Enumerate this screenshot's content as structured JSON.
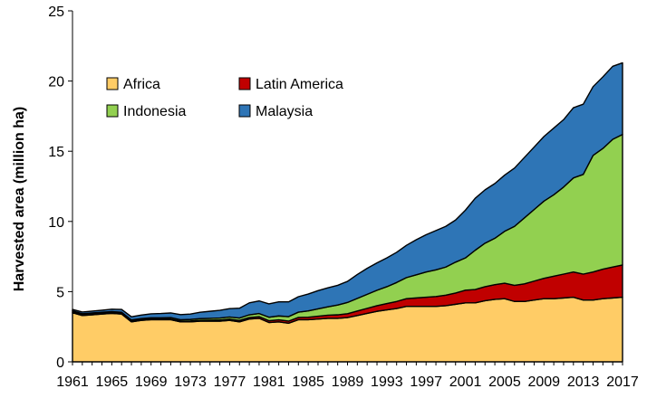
{
  "chart_data": {
    "type": "area",
    "stacked": true,
    "title": "",
    "xlabel": "",
    "ylabel": "Harvested area (million ha)",
    "xlim": [
      1961,
      2017
    ],
    "ylim": [
      0,
      25
    ],
    "yticks": [
      "0",
      "5",
      "10",
      "15",
      "20",
      "25"
    ],
    "xticks": [
      "1961",
      "1965",
      "1969",
      "1973",
      "1977",
      "1981",
      "1985",
      "1989",
      "1993",
      "1997",
      "2001",
      "2005",
      "2009",
      "2013",
      "2017"
    ],
    "grid": false,
    "legend_position": "top-left",
    "x": [
      1961,
      1962,
      1963,
      1964,
      1965,
      1966,
      1967,
      1968,
      1969,
      1970,
      1971,
      1972,
      1973,
      1974,
      1975,
      1976,
      1977,
      1978,
      1979,
      1980,
      1981,
      1982,
      1983,
      1984,
      1985,
      1986,
      1987,
      1988,
      1989,
      1990,
      1991,
      1992,
      1993,
      1994,
      1995,
      1996,
      1997,
      1998,
      1999,
      2000,
      2001,
      2002,
      2003,
      2004,
      2005,
      2006,
      2007,
      2008,
      2009,
      2010,
      2011,
      2012,
      2013,
      2014,
      2015,
      2016,
      2017
    ],
    "series": [
      {
        "name": "Africa",
        "color": "#FFCC66",
        "values": [
          3.5,
          3.3,
          3.35,
          3.4,
          3.45,
          3.4,
          2.85,
          2.95,
          3.0,
          3.0,
          3.0,
          2.85,
          2.85,
          2.9,
          2.9,
          2.9,
          2.95,
          2.85,
          3.05,
          3.1,
          2.8,
          2.85,
          2.75,
          3.0,
          3.0,
          3.05,
          3.1,
          3.1,
          3.15,
          3.3,
          3.45,
          3.6,
          3.7,
          3.8,
          3.95,
          3.95,
          3.95,
          3.95,
          4.0,
          4.1,
          4.2,
          4.2,
          4.35,
          4.45,
          4.5,
          4.3,
          4.3,
          4.4,
          4.5,
          4.5,
          4.55,
          4.6,
          4.4,
          4.4,
          4.5,
          4.55,
          4.6
        ]
      },
      {
        "name": "Latin America",
        "color": "#C00000",
        "values": [
          0.05,
          0.05,
          0.05,
          0.05,
          0.05,
          0.05,
          0.05,
          0.05,
          0.05,
          0.05,
          0.05,
          0.05,
          0.06,
          0.06,
          0.07,
          0.08,
          0.09,
          0.1,
          0.1,
          0.12,
          0.13,
          0.14,
          0.15,
          0.16,
          0.18,
          0.2,
          0.22,
          0.25,
          0.28,
          0.32,
          0.36,
          0.4,
          0.45,
          0.5,
          0.55,
          0.6,
          0.65,
          0.7,
          0.75,
          0.8,
          0.9,
          0.95,
          1.0,
          1.05,
          1.1,
          1.15,
          1.25,
          1.35,
          1.45,
          1.6,
          1.7,
          1.8,
          1.85,
          2.0,
          2.1,
          2.2,
          2.3
        ]
      },
      {
        "name": "Indonesia",
        "color": "#92D050",
        "values": [
          0.08,
          0.08,
          0.08,
          0.08,
          0.08,
          0.08,
          0.08,
          0.08,
          0.09,
          0.09,
          0.1,
          0.1,
          0.11,
          0.12,
          0.13,
          0.14,
          0.15,
          0.17,
          0.2,
          0.22,
          0.25,
          0.28,
          0.32,
          0.38,
          0.45,
          0.52,
          0.6,
          0.7,
          0.8,
          0.9,
          1.0,
          1.1,
          1.2,
          1.35,
          1.5,
          1.65,
          1.8,
          1.9,
          2.0,
          2.2,
          2.3,
          2.8,
          3.1,
          3.3,
          3.7,
          4.2,
          4.7,
          5.1,
          5.5,
          5.8,
          6.2,
          6.7,
          7.1,
          8.3,
          8.6,
          9.1,
          9.3
        ]
      },
      {
        "name": "Malaysia",
        "color": "#2E75B6",
        "values": [
          0.1,
          0.12,
          0.13,
          0.15,
          0.17,
          0.2,
          0.23,
          0.25,
          0.28,
          0.3,
          0.33,
          0.36,
          0.38,
          0.45,
          0.5,
          0.55,
          0.6,
          0.7,
          0.85,
          0.9,
          0.95,
          1.0,
          1.05,
          1.1,
          1.2,
          1.3,
          1.35,
          1.4,
          1.5,
          1.7,
          1.85,
          1.95,
          2.05,
          2.15,
          2.3,
          2.5,
          2.65,
          2.8,
          2.9,
          3.0,
          3.4,
          3.7,
          3.8,
          3.9,
          4.0,
          4.15,
          4.3,
          4.45,
          4.6,
          4.75,
          4.8,
          5.0,
          5.0,
          4.9,
          5.1,
          5.2,
          5.1
        ]
      }
    ]
  }
}
